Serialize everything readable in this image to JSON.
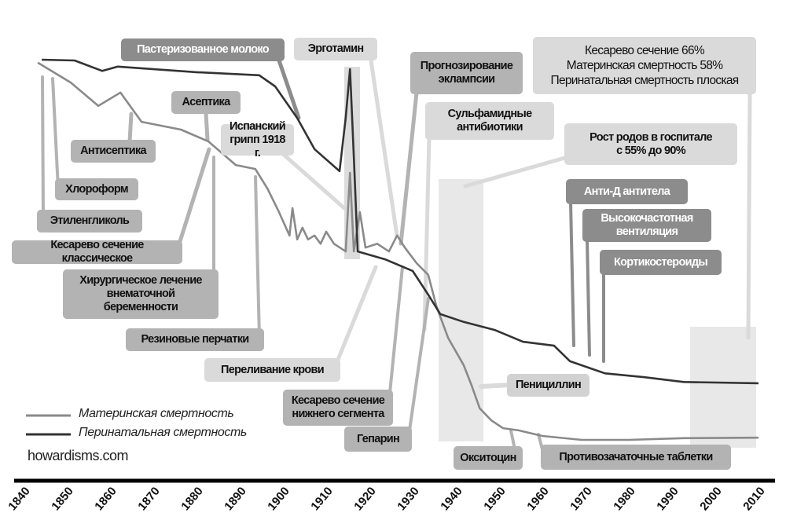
{
  "chart_data": {
    "type": "line",
    "title": "",
    "xlabel": "",
    "ylabel": "",
    "xlim": [
      1840,
      2010
    ],
    "ylim": [
      0,
      100
    ],
    "x_ticks": [
      "1840",
      "1850",
      "1860",
      "1870",
      "1880",
      "1890",
      "1900",
      "1910",
      "1920",
      "1930",
      "1940",
      "1950",
      "1960",
      "1970",
      "1980",
      "1990",
      "2000",
      "2010"
    ],
    "legend_placement": "bottom-left",
    "series": [
      {
        "name": "Материнская смертность",
        "color": "#8a8a8a",
        "points": [
          [
            1843.3,
            96.4
          ],
          [
            1850.9,
            91.8
          ],
          [
            1857.3,
            86.4
          ],
          [
            1862.4,
            89.5
          ],
          [
            1867.3,
            82.7
          ],
          [
            1876.4,
            80.9
          ],
          [
            1882.7,
            78.2
          ],
          [
            1889.1,
            72.7
          ],
          [
            1893.6,
            71.8
          ],
          [
            1896.4,
            67.3
          ],
          [
            1899.1,
            61.8
          ],
          [
            1901.5,
            56.4
          ],
          [
            1902.2,
            62.7
          ],
          [
            1903.3,
            55.5
          ],
          [
            1904.5,
            58.2
          ],
          [
            1905.8,
            55.5
          ],
          [
            1907.3,
            56.4
          ],
          [
            1908.7,
            54.5
          ],
          [
            1910,
            57.3
          ],
          [
            1911.8,
            54.5
          ],
          [
            1914.5,
            52.7
          ],
          [
            1915.5,
            70.9
          ],
          [
            1916.4,
            52.7
          ],
          [
            1917.8,
            61.8
          ],
          [
            1919.1,
            53.6
          ],
          [
            1921.8,
            54.5
          ],
          [
            1924.5,
            52.7
          ],
          [
            1926.4,
            56.4
          ],
          [
            1928.2,
            53.6
          ],
          [
            1930.9,
            50
          ],
          [
            1933.6,
            47.3
          ],
          [
            1935.5,
            40
          ],
          [
            1938.2,
            32.7
          ],
          [
            1941.8,
            26.4
          ],
          [
            1943.6,
            21.8
          ],
          [
            1945.5,
            16.4
          ],
          [
            1948.2,
            13.6
          ],
          [
            1950.9,
            11.8
          ],
          [
            1954.5,
            11.3
          ],
          [
            1960,
            10
          ],
          [
            1969.1,
            9.1
          ],
          [
            1980,
            9.1
          ],
          [
            1992.7,
            9.5
          ],
          [
            2010,
            9.6
          ]
        ]
      },
      {
        "name": "Перинатальная смертность",
        "color": "#333333",
        "points": [
          [
            1844.2,
            97.1
          ],
          [
            1851.8,
            96.9
          ],
          [
            1858.2,
            94.5
          ],
          [
            1861.8,
            95.5
          ],
          [
            1880,
            94.2
          ],
          [
            1894.5,
            93.5
          ],
          [
            1898.2,
            90.9
          ],
          [
            1903.3,
            83.6
          ],
          [
            1907.3,
            76.4
          ],
          [
            1913.1,
            71.3
          ],
          [
            1914.5,
            83.6
          ],
          [
            1915.5,
            94.9
          ],
          [
            1916.4,
            74.5
          ],
          [
            1917.3,
            52.7
          ],
          [
            1923.6,
            50.9
          ],
          [
            1930,
            48.2
          ],
          [
            1933.6,
            42.7
          ],
          [
            1936.4,
            38.2
          ],
          [
            1941.8,
            36.4
          ],
          [
            1949.1,
            34.5
          ],
          [
            1955.5,
            31.8
          ],
          [
            1962.7,
            30.9
          ],
          [
            1966.4,
            27.3
          ],
          [
            1974.5,
            24.5
          ],
          [
            1983.6,
            23.6
          ],
          [
            1992.7,
            22.5
          ],
          [
            2010,
            22.2
          ]
        ]
      }
    ],
    "annotations": {
      "pasteurized_milk": "Пастеризованное молоко",
      "ergotamine": "Эрготамин",
      "eclampsia": "Прогнозирование\nэклампсии",
      "summary": "Кесарево сечение 66%\nМатеринская смертность 58%\nПеринатальная смертность плоская",
      "sulfa": "Сульфамидные\nантибиотики",
      "hospital_births": "Рост родов в госпитале\nс 55% до 90%",
      "anti_d": "Анти-Д антитела",
      "hfv": "Высокочастотная\nвентиляция",
      "corticosteroids": "Кортикостероиды",
      "asepsis": "Асептика",
      "spanish_flu": "Испанский\nгрипп 1918 г.",
      "antisepsis": "Антисептика",
      "chloroform": "Хлороформ",
      "ethylene_glycol": "Этиленгликоль",
      "classical_cs": "Кесарево сечение классическое",
      "ectopic": "Хирургическое лечение\nвнематочной\nбеременности",
      "gloves": "Резиновые перчатки",
      "transfusion": "Переливание крови",
      "lower_segment_cs": "Кесарево сечение\nнижнего сегмента",
      "heparin": "Гепарин",
      "penicillin": "Пенициллин",
      "oxytocin": "Окситоцин",
      "contraceptives": "Противозачаточные таблетки"
    }
  },
  "source": "howardisms.com"
}
